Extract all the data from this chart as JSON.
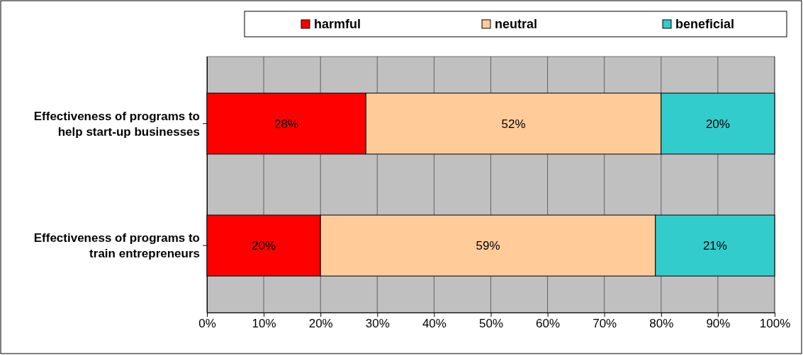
{
  "chart_data": {
    "type": "bar",
    "orientation": "horizontal",
    "stacked": true,
    "categories": [
      "Effectiveness of programs to help start-up businesses",
      "Effectiveness of programs to train entrepreneurs"
    ],
    "series": [
      {
        "name": "harmful",
        "color": "#ff0000",
        "values": [
          28,
          20
        ]
      },
      {
        "name": "neutral",
        "color": "#ffcc99",
        "values": [
          52,
          59
        ]
      },
      {
        "name": "beneficial",
        "color": "#33cccc",
        "values": [
          20,
          21
        ]
      }
    ],
    "xlim": [
      0,
      100
    ],
    "xticks": [
      {
        "value": 0,
        "label": "0%"
      },
      {
        "value": 10,
        "label": "10%"
      },
      {
        "value": 20,
        "label": "20%"
      },
      {
        "value": 30,
        "label": "30%"
      },
      {
        "value": 40,
        "label": "40%"
      },
      {
        "value": 50,
        "label": "50%"
      },
      {
        "value": 60,
        "label": "60%"
      },
      {
        "value": 70,
        "label": "70%"
      },
      {
        "value": 80,
        "label": "80%"
      },
      {
        "value": 90,
        "label": "90%"
      },
      {
        "value": 100,
        "label": "100%"
      }
    ],
    "value_labels": [
      [
        "28%",
        "20%"
      ],
      [
        "52%",
        "59%"
      ],
      [
        "20%",
        "21%"
      ]
    ],
    "grid": "x",
    "legend": "top"
  }
}
